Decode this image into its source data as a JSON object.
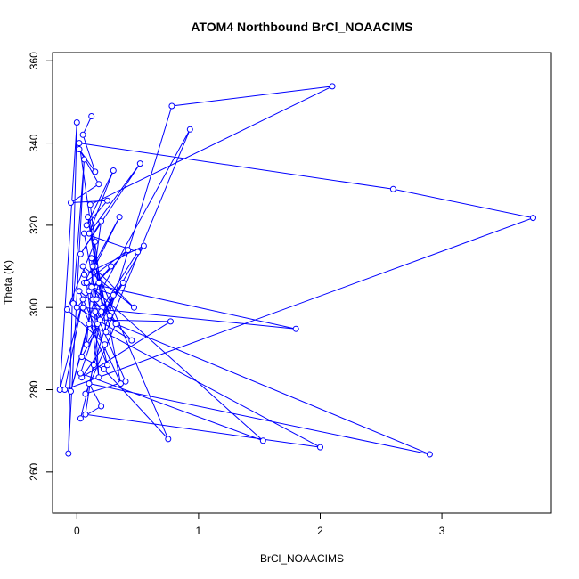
{
  "chart_data": {
    "type": "line",
    "title": "ATOM4 Northbound BrCl_NOAACIMS",
    "xlabel": "BrCl_NOAACIMS",
    "ylabel": "Theta (K)",
    "xlim": [
      -0.2,
      3.9
    ],
    "ylim": [
      250,
      362
    ],
    "x_ticks": [
      0,
      1,
      2,
      3
    ],
    "x_tick_labels": [
      "0",
      "1",
      "2",
      "3"
    ],
    "y_ticks": [
      260,
      280,
      300,
      320,
      340,
      360
    ],
    "y_tick_labels": [
      "260",
      "280",
      "300",
      "320",
      "340",
      "360"
    ],
    "grid": false,
    "legend": "none",
    "series": [
      {
        "color": "#0000ff",
        "marker": "open-circle",
        "x": [
          0.12,
          0.05,
          0.15,
          0.02,
          0.18,
          -0.05,
          0.25,
          0.08,
          0.3,
          0.1,
          0.52,
          0.03,
          0.2,
          0.15,
          0.35,
          0.06,
          0.42,
          0.1,
          0.28,
          0.0,
          0.45,
          0.13,
          0.33,
          0.06,
          0.55,
          0.17,
          0.38,
          0.04,
          0.22,
          0.75,
          0.12,
          0.18,
          0.08,
          1.8,
          0.05,
          0.25,
          0.15,
          0.4,
          0.07,
          0.32,
          2.9,
          0.1,
          0.2,
          0.03,
          0.14,
          0.78,
          2.1,
          0.11,
          0.24,
          0.93,
          0.16,
          0.06,
          0.5,
          0.21,
          0.09,
          0.36,
          0.02,
          0.27,
          0.13,
          0.47,
          0.05,
          0.19,
          0.77,
          0.04,
          0.23,
          -0.08,
          0.15,
          0.08,
          0.3,
          0.12,
          1.53,
          0.03,
          0.2,
          0.07,
          2.0,
          0.1,
          -0.05,
          0.18,
          0.02,
          2.6,
          3.75,
          -0.1,
          0.05,
          -0.14,
          0.0,
          -0.07,
          0.06,
          -0.03
        ],
        "y": [
          346.5,
          342.0,
          333.0,
          338.5,
          330.0,
          325.5,
          326.0,
          320.0,
          333.3,
          318.0,
          335.0,
          313.0,
          321.0,
          310.0,
          322.0,
          306.0,
          314.0,
          304.0,
          310.0,
          300.0,
          292.0,
          302.0,
          296.0,
          308.0,
          315.0,
          296.0,
          306.0,
          288.0,
          285.0,
          268.0,
          312.0,
          283.0,
          306.0,
          294.8,
          300.0,
          286.0,
          299.0,
          282.0,
          279.0,
          296.0,
          264.3,
          281.5,
          276.0,
          273.0,
          286.0,
          349.0,
          353.8,
          325.0,
          294.0,
          343.3,
          302.0,
          318.0,
          313.5,
          300.0,
          322.0,
          281.5,
          304.0,
          298.0,
          310.0,
          300.0,
          310.0,
          297.0,
          296.6,
          283.0,
          291.0,
          299.5,
          316.0,
          291.0,
          303.0,
          305.0,
          267.6,
          284.0,
          299.0,
          274.0,
          266.0,
          296.0,
          279.6,
          306.0,
          340.0,
          328.8,
          321.8,
          280.0,
          302.0,
          280.0,
          345.0,
          264.5,
          336.0,
          301.0
        ]
      }
    ]
  }
}
